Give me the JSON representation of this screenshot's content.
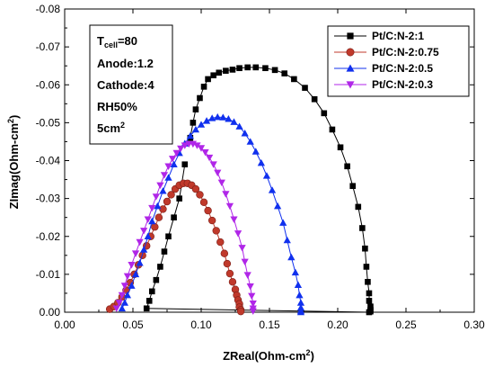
{
  "chart_data": {
    "type": "scatter",
    "xlabel": "ZReal(Ohm-cm",
    "xlabel_sup": "2",
    "xlabel_tail": ")",
    "ylabel": "ZImag(Ohm-cm",
    "ylabel_sup": "2",
    "ylabel_tail": ")",
    "xlim": [
      0.0,
      0.3
    ],
    "ylim": [
      0.0,
      -0.08
    ],
    "x_ticks": [
      "0.00",
      "0.05",
      "0.10",
      "0.15",
      "0.20",
      "0.25",
      "0.30"
    ],
    "y_ticks": [
      "0.00",
      "-0.01",
      "-0.02",
      "-0.03",
      "-0.04",
      "-0.05",
      "-0.06",
      "-0.07",
      "-0.08"
    ],
    "legend_position": "top-right",
    "info_box": {
      "t_label": "T",
      "t_sub": "cell",
      "t_value": "=80",
      "anode": "Anode:1.2",
      "cathode": "Cathode:4",
      "rh": "RH50%",
      "area": "5cm",
      "area_sup": "2"
    },
    "series": [
      {
        "name": "Pt/C:N-2:1",
        "color": "#000000",
        "marker": "square",
        "x": [
          0.092,
          0.094,
          0.096,
          0.099,
          0.102,
          0.105,
          0.109,
          0.113,
          0.118,
          0.123,
          0.128,
          0.134,
          0.14,
          0.147,
          0.154,
          0.161,
          0.168,
          0.176,
          0.183,
          0.19,
          0.196,
          0.202,
          0.207,
          0.211,
          0.215,
          0.218,
          0.22,
          0.221,
          0.222,
          0.223,
          0.223,
          0.224,
          0.224,
          0.224,
          0.223,
          0.06,
          0.062,
          0.064,
          0.067,
          0.07,
          0.073,
          0.076,
          0.08,
          0.084,
          0.088
        ],
        "y": [
          -0.046,
          -0.05,
          -0.0535,
          -0.0565,
          -0.0595,
          -0.0615,
          -0.0625,
          -0.0632,
          -0.0637,
          -0.064,
          -0.0644,
          -0.0646,
          -0.0646,
          -0.0644,
          -0.0639,
          -0.063,
          -0.0615,
          -0.0592,
          -0.0562,
          -0.0525,
          -0.0482,
          -0.0435,
          -0.0385,
          -0.0333,
          -0.0278,
          -0.0222,
          -0.0168,
          -0.012,
          -0.008,
          -0.005,
          -0.003,
          -0.0015,
          -0.0006,
          -0.0002,
          0.0,
          -0.001,
          -0.003,
          -0.0055,
          -0.0085,
          -0.012,
          -0.016,
          -0.02,
          -0.025,
          -0.03,
          -0.039
        ]
      },
      {
        "name": "Pt/C:N-2:0.75",
        "color": "#c0392b",
        "marker": "circle",
        "x": [
          0.033,
          0.036,
          0.039,
          0.042,
          0.045,
          0.048,
          0.051,
          0.054,
          0.057,
          0.06,
          0.063,
          0.066,
          0.069,
          0.072,
          0.075,
          0.078,
          0.081,
          0.084,
          0.087,
          0.09,
          0.093,
          0.096,
          0.099,
          0.102,
          0.105,
          0.108,
          0.111,
          0.114,
          0.117,
          0.119,
          0.121,
          0.123,
          0.125,
          0.126,
          0.127,
          0.128,
          0.128,
          0.129,
          0.129
        ],
        "y": [
          -0.0008,
          -0.0015,
          -0.0025,
          -0.004,
          -0.0058,
          -0.0078,
          -0.01,
          -0.0125,
          -0.015,
          -0.0175,
          -0.02,
          -0.0225,
          -0.025,
          -0.0272,
          -0.0292,
          -0.031,
          -0.0325,
          -0.0335,
          -0.034,
          -0.034,
          -0.0335,
          -0.0325,
          -0.031,
          -0.029,
          -0.0268,
          -0.0242,
          -0.0215,
          -0.0185,
          -0.0155,
          -0.0128,
          -0.0102,
          -0.008,
          -0.006,
          -0.0045,
          -0.0032,
          -0.0022,
          -0.0013,
          -0.0006,
          -0.0002
        ]
      },
      {
        "name": "Pt/C:N-2:0.5",
        "color": "#1030ee",
        "marker": "triangle-up",
        "x": [
          0.042,
          0.044,
          0.046,
          0.049,
          0.052,
          0.055,
          0.058,
          0.061,
          0.064,
          0.068,
          0.072,
          0.076,
          0.08,
          0.084,
          0.088,
          0.092,
          0.096,
          0.1,
          0.104,
          0.108,
          0.112,
          0.116,
          0.12,
          0.124,
          0.128,
          0.132,
          0.136,
          0.14,
          0.144,
          0.148,
          0.152,
          0.156,
          0.16,
          0.163,
          0.166,
          0.169,
          0.171,
          0.172,
          0.173,
          0.173,
          0.173,
          0.173
        ],
        "y": [
          -0.001,
          -0.0025,
          -0.0045,
          -0.007,
          -0.01,
          -0.013,
          -0.0165,
          -0.02,
          -0.024,
          -0.028,
          -0.032,
          -0.0355,
          -0.039,
          -0.042,
          -0.0445,
          -0.0465,
          -0.0482,
          -0.0495,
          -0.0505,
          -0.0512,
          -0.0515,
          -0.0514,
          -0.051,
          -0.0502,
          -0.049,
          -0.0472,
          -0.045,
          -0.0424,
          -0.0394,
          -0.036,
          -0.0322,
          -0.028,
          -0.0236,
          -0.019,
          -0.0145,
          -0.0105,
          -0.0072,
          -0.0045,
          -0.0025,
          -0.0012,
          -0.0004,
          0.0
        ]
      },
      {
        "name": "Pt/C:N-2:0.3",
        "color": "#b026e8",
        "marker": "triangle-down",
        "x": [
          0.038,
          0.04,
          0.042,
          0.044,
          0.046,
          0.049,
          0.052,
          0.055,
          0.058,
          0.061,
          0.064,
          0.067,
          0.07,
          0.073,
          0.076,
          0.079,
          0.082,
          0.085,
          0.088,
          0.091,
          0.094,
          0.097,
          0.1,
          0.103,
          0.106,
          0.109,
          0.112,
          0.115,
          0.118,
          0.121,
          0.124,
          0.127,
          0.13,
          0.132,
          0.134,
          0.136,
          0.137,
          0.138,
          0.138,
          0.138
        ],
        "y": [
          -0.001,
          -0.0025,
          -0.0045,
          -0.007,
          -0.0095,
          -0.0125,
          -0.0155,
          -0.0185,
          -0.0215,
          -0.0245,
          -0.0275,
          -0.0305,
          -0.0335,
          -0.0362,
          -0.0385,
          -0.0405,
          -0.042,
          -0.0432,
          -0.044,
          -0.0444,
          -0.0444,
          -0.044,
          -0.0433,
          -0.0422,
          -0.0408,
          -0.039,
          -0.0368,
          -0.0342,
          -0.0312,
          -0.028,
          -0.0245,
          -0.0208,
          -0.017,
          -0.0133,
          -0.0098,
          -0.0068,
          -0.0043,
          -0.0023,
          -0.001,
          -0.0003
        ]
      }
    ]
  }
}
